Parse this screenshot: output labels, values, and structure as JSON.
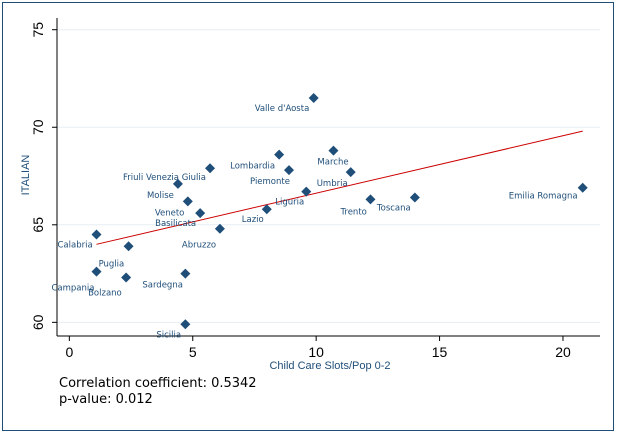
{
  "chart_data": {
    "type": "scatter",
    "xlabel": "Child Care Slots/Pop 0-2",
    "ylabel": "ITALIAN",
    "xlim": [
      -0.5,
      21.5
    ],
    "ylim": [
      59.3,
      75.6
    ],
    "x_ticks": [
      0,
      5,
      10,
      15,
      20
    ],
    "y_ticks": [
      60,
      65,
      70,
      75
    ],
    "grid": "horizontal",
    "marker_color": "#1f4e79",
    "line_color": "#cc0000",
    "points": [
      {
        "label": "Valle d'Aosta",
        "x": 9.9,
        "y": 71.5
      },
      {
        "label": "Marche",
        "x": 10.7,
        "y": 68.8
      },
      {
        "label": "Lombardia",
        "x": 8.5,
        "y": 68.6
      },
      {
        "label": "Friuli Venezia Giulia",
        "x": 5.7,
        "y": 67.9
      },
      {
        "label": "Piemonte",
        "x": 8.9,
        "y": 67.8
      },
      {
        "label": "Umbria",
        "x": 11.4,
        "y": 67.7
      },
      {
        "label": "Molise",
        "x": 4.4,
        "y": 67.1
      },
      {
        "label": "Liguria",
        "x": 9.6,
        "y": 66.7
      },
      {
        "label": "Trento",
        "x": 12.2,
        "y": 66.3
      },
      {
        "label": "Toscana",
        "x": 14.0,
        "y": 66.4
      },
      {
        "label": "Emilia Romagna",
        "x": 20.8,
        "y": 66.9
      },
      {
        "label": "Veneto",
        "x": 4.8,
        "y": 66.2
      },
      {
        "label": "Basilicata",
        "x": 5.3,
        "y": 65.6
      },
      {
        "label": "Lazio",
        "x": 8.0,
        "y": 65.8
      },
      {
        "label": "Abruzzo",
        "x": 6.1,
        "y": 64.8
      },
      {
        "label": "Calabria",
        "x": 1.1,
        "y": 64.5
      },
      {
        "label": "Puglia",
        "x": 2.4,
        "y": 63.9
      },
      {
        "label": "Campania",
        "x": 1.1,
        "y": 62.6
      },
      {
        "label": "Bolzano",
        "x": 2.3,
        "y": 62.3
      },
      {
        "label": "Sardegna",
        "x": 4.7,
        "y": 62.5
      },
      {
        "label": "Sicilia",
        "x": 4.7,
        "y": 59.9
      }
    ],
    "fit_line": {
      "x": [
        1.1,
        20.8
      ],
      "y": [
        64.0,
        69.8
      ]
    }
  },
  "notes": {
    "correlation": "Correlation coefficient: 0.5342",
    "pvalue": "p-value: 0.012"
  }
}
